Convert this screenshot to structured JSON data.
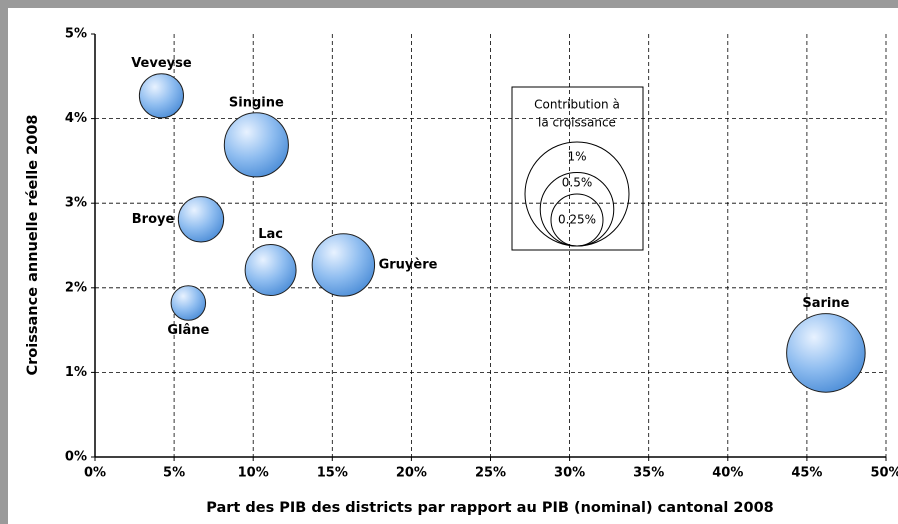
{
  "chart_data": {
    "type": "bubble",
    "x_label": "Part des PIB des districts par rapport au PIB (nominal) cantonal 2008",
    "y_label": "Croissance annuelle réelle 2008",
    "categories": [
      "Veveyse",
      "Singine",
      "Broye",
      "Lac",
      "Gruyère",
      "Glâne",
      "Sarine"
    ],
    "x": [
      4.2,
      10.2,
      6.7,
      11.1,
      15.7,
      5.9,
      46.2
    ],
    "values": [
      4.27,
      3.69,
      2.81,
      2.21,
      2.27,
      1.82,
      1.23
    ],
    "sizes": [
      0.18,
      0.38,
      0.19,
      0.24,
      0.36,
      0.11,
      0.57
    ],
    "color": "#6fa8e8",
    "xlim": [
      0,
      50
    ],
    "xticks": [
      {
        "value": 0,
        "label": "0%"
      },
      {
        "value": 5,
        "label": "5%"
      },
      {
        "value": 10,
        "label": "10%"
      },
      {
        "value": 15,
        "label": "15%"
      },
      {
        "value": 20,
        "label": "20%"
      },
      {
        "value": 25,
        "label": "25%"
      },
      {
        "value": 30,
        "label": "30%"
      },
      {
        "value": 35,
        "label": "35%"
      },
      {
        "value": 40,
        "label": "40%"
      },
      {
        "value": 45,
        "label": "45%"
      },
      {
        "value": 50,
        "label": "50%"
      }
    ],
    "ylim": [
      0,
      5
    ],
    "yticks": [
      {
        "value": 0,
        "label": "0%"
      },
      {
        "value": 1,
        "label": "1%"
      },
      {
        "value": 2,
        "label": "2%"
      },
      {
        "value": 3,
        "label": "3%"
      },
      {
        "value": 4,
        "label": "4%"
      },
      {
        "value": 5,
        "label": "5%"
      }
    ],
    "grid": true,
    "size_legend": {
      "title": [
        "Contribution à",
        "la croissance"
      ],
      "sizes": [
        {
          "value": 1,
          "label": "1%"
        },
        {
          "value": 0.5,
          "label": "0.5%"
        },
        {
          "value": 0.25,
          "label": "0.25%"
        }
      ]
    }
  }
}
